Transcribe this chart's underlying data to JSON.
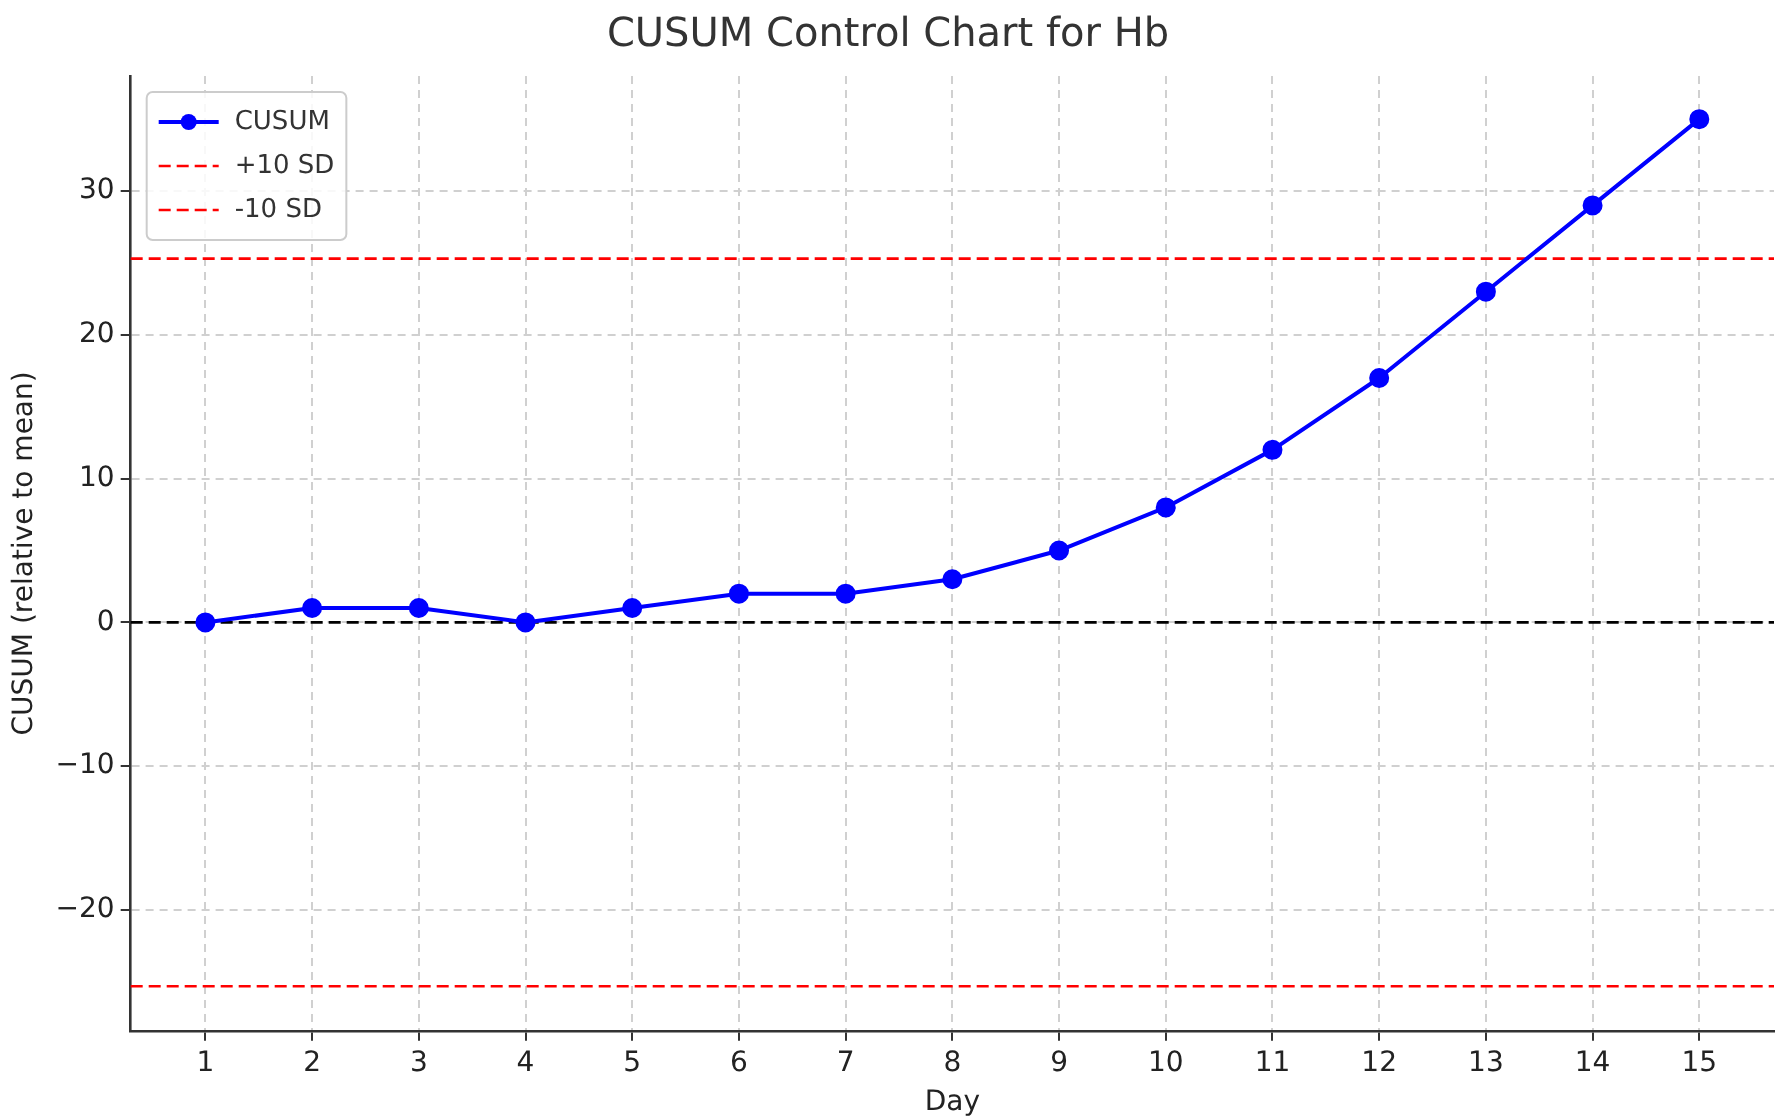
{
  "chart_data": {
    "type": "line",
    "title": "CUSUM Control Chart for Hb",
    "xlabel": "Day",
    "ylabel": "CUSUM (relative to mean)",
    "x": [
      1,
      2,
      3,
      4,
      5,
      6,
      7,
      8,
      9,
      10,
      11,
      12,
      13,
      14,
      15
    ],
    "series": [
      {
        "name": "CUSUM",
        "color": "#0000ff",
        "values": [
          0,
          1,
          1,
          0,
          1,
          2,
          2,
          3,
          5,
          8,
          12,
          17,
          23,
          29,
          35
        ]
      }
    ],
    "ref_lines": [
      {
        "axis": "y",
        "value": 25.3,
        "label": "+10 SD",
        "color": "#ff0000",
        "line_style": "dashed"
      },
      {
        "axis": "y",
        "value": -25.3,
        "label": "-10 SD",
        "color": "#ff0000",
        "line_style": "dashed"
      },
      {
        "axis": "y",
        "value": 0,
        "color": "#000000",
        "line_style": "dashed"
      }
    ],
    "xlim": [
      0.3,
      15.7
    ],
    "xticks": [
      1,
      2,
      3,
      4,
      5,
      6,
      7,
      8,
      9,
      10,
      11,
      12,
      13,
      14,
      15
    ],
    "ylim": [
      -28.4,
      38
    ],
    "yticks": [
      -20,
      -10,
      0,
      10,
      20,
      30
    ],
    "grid": true,
    "legend": "top left",
    "marker": "circle",
    "line_style": "solid"
  }
}
